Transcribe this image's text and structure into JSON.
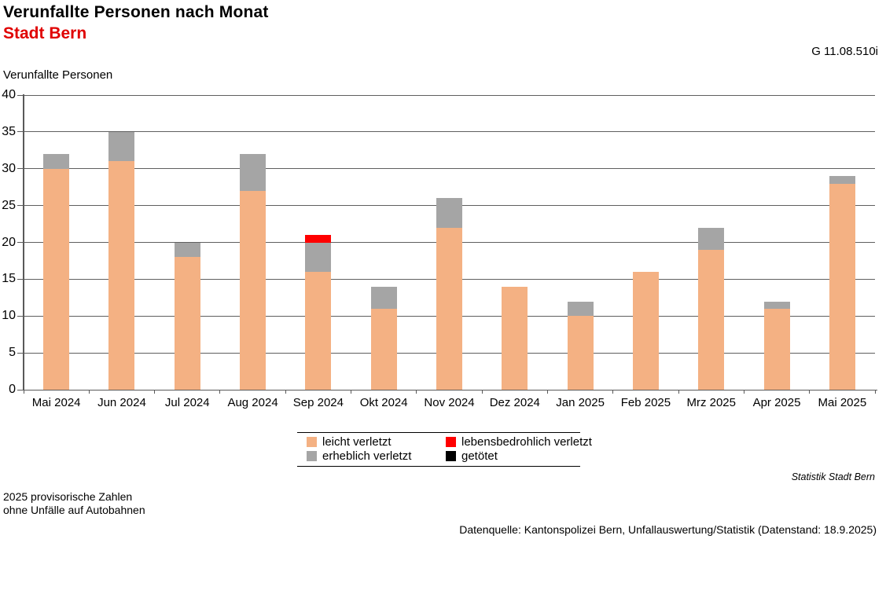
{
  "header": {
    "title": "Verunfallte Personen nach Monat",
    "subtitle": "Stadt Bern",
    "subtitle_color": "#e00000",
    "figure_id": "G 11.08.510i"
  },
  "chart_data": {
    "type": "bar",
    "stacked": true,
    "title": "Verunfallte Personen nach Monat",
    "ylabel": "Verunfallte Personen",
    "categories": [
      "Mai 2024",
      "Jun 2024",
      "Jul 2024",
      "Aug 2024",
      "Sep 2024",
      "Okt 2024",
      "Nov 2024",
      "Dez 2024",
      "Jan 2025",
      "Feb 2025",
      "Mrz 2025",
      "Apr 2025",
      "Mai 2025"
    ],
    "series": [
      {
        "name": "leicht verletzt",
        "color": "#F4B183",
        "values": [
          30,
          31,
          18,
          27,
          16,
          11,
          22,
          14,
          10,
          16,
          19,
          11,
          28
        ]
      },
      {
        "name": "erheblich verletzt",
        "color": "#A5A5A5",
        "values": [
          2,
          4,
          2,
          5,
          4,
          3,
          4,
          0,
          2,
          0,
          3,
          1,
          1
        ]
      },
      {
        "name": "lebensbedrohlich verletzt",
        "color": "#FF0000",
        "values": [
          0,
          0,
          0,
          0,
          1,
          0,
          0,
          0,
          0,
          0,
          0,
          0,
          0
        ]
      },
      {
        "name": "getötet",
        "color": "#000000",
        "values": [
          0,
          0,
          0,
          0,
          0,
          0,
          0,
          0,
          0,
          0,
          0,
          0,
          0
        ]
      }
    ],
    "totals": [
      32,
      35,
      20,
      32,
      21,
      14,
      26,
      14,
      12,
      16,
      22,
      12,
      29
    ],
    "ylim": [
      0,
      40
    ],
    "ytick_step": 5,
    "grid": true,
    "legend_position": "bottom",
    "legend_display_order": [
      0,
      2,
      1,
      3
    ],
    "axis_color": "#595959"
  },
  "footer": {
    "attribution": "Statistik Stadt Bern",
    "notes": [
      "2025 provisorische Zahlen",
      "ohne Unfälle auf Autobahnen"
    ],
    "datasource": "Datenquelle: Kantonspolizei Bern, Unfallauswertung/Statistik (Datenstand: 18.9.2025)"
  }
}
